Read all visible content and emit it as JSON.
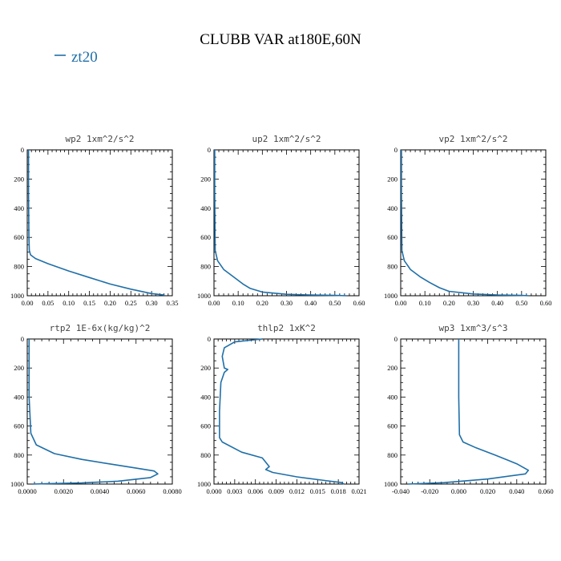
{
  "title": "CLUBB VAR at180E,60N",
  "legend": {
    "label": "zt20",
    "color": "#1f6fa8"
  },
  "chart_data": [
    {
      "type": "line",
      "title": "wp2  1xm^2/s^2",
      "xlim": [
        0,
        0.35
      ],
      "ylim": [
        1000,
        0
      ],
      "xticks": [
        0,
        0.05,
        0.1,
        0.15,
        0.2,
        0.25,
        0.3,
        0.35
      ],
      "xtick_labels": [
        "0.00",
        "0.05",
        "0.10",
        "0.15",
        "0.20",
        "0.25",
        "0.30",
        "0.35"
      ],
      "yticks": [
        0,
        200,
        400,
        600,
        800,
        1000
      ],
      "ytick_labels": [
        "0",
        "200",
        "400",
        "600",
        "800",
        "1000"
      ],
      "series": [
        {
          "x": [
            0.003,
            0.003,
            0.004,
            0.005,
            0.008,
            0.02,
            0.05,
            0.1,
            0.15,
            0.2,
            0.25,
            0.3,
            0.33,
            0.33
          ],
          "y": [
            0,
            300,
            600,
            690,
            720,
            745,
            780,
            830,
            875,
            920,
            955,
            985,
            995,
            1000
          ]
        }
      ]
    },
    {
      "type": "line",
      "title": "up2  1xm^2/s^2",
      "xlim": [
        0,
        0.6
      ],
      "ylim": [
        1000,
        0
      ],
      "xticks": [
        0,
        0.1,
        0.2,
        0.3,
        0.4,
        0.5,
        0.6
      ],
      "xtick_labels": [
        "0.00",
        "0.10",
        "0.20",
        "0.30",
        "0.40",
        "0.50",
        "0.60"
      ],
      "yticks": [
        0,
        200,
        400,
        600,
        800,
        1000
      ],
      "ytick_labels": [
        "0",
        "200",
        "400",
        "600",
        "800",
        "1000"
      ],
      "series": [
        {
          "x": [
            0.003,
            0.003,
            0.005,
            0.015,
            0.04,
            0.08,
            0.12,
            0.15,
            0.2,
            0.3,
            0.4,
            0.5,
            0.55
          ],
          "y": [
            0,
            300,
            690,
            760,
            820,
            870,
            920,
            950,
            975,
            990,
            995,
            998,
            1000
          ]
        }
      ]
    },
    {
      "type": "line",
      "title": "vp2  1xm^2/s^2",
      "xlim": [
        0,
        0.6
      ],
      "ylim": [
        1000,
        0
      ],
      "xticks": [
        0,
        0.1,
        0.2,
        0.3,
        0.4,
        0.5,
        0.6
      ],
      "xtick_labels": [
        "0.00",
        "0.10",
        "0.20",
        "0.30",
        "0.40",
        "0.50",
        "0.60"
      ],
      "yticks": [
        0,
        200,
        400,
        600,
        800,
        1000
      ],
      "ytick_labels": [
        "0",
        "200",
        "400",
        "600",
        "800",
        "1000"
      ],
      "series": [
        {
          "x": [
            0.003,
            0.003,
            0.005,
            0.015,
            0.04,
            0.08,
            0.12,
            0.16,
            0.2,
            0.3,
            0.4,
            0.5,
            0.53
          ],
          "y": [
            0,
            300,
            690,
            760,
            820,
            870,
            910,
            945,
            970,
            988,
            995,
            998,
            1000
          ]
        }
      ]
    },
    {
      "type": "line",
      "title": "rtp2  1E-6x(kg/kg)^2",
      "xlim": [
        0,
        0.008
      ],
      "ylim": [
        1000,
        0
      ],
      "xticks": [
        0,
        0.002,
        0.004,
        0.006,
        0.008
      ],
      "xtick_labels": [
        "0.0000",
        "0.0020",
        "0.0040",
        "0.0060",
        "0.0080"
      ],
      "yticks": [
        0,
        200,
        400,
        600,
        800,
        1000
      ],
      "ytick_labels": [
        "0",
        "200",
        "400",
        "600",
        "800",
        "1000"
      ],
      "series": [
        {
          "x": [
            0.0001,
            0.0001,
            0.0002,
            0.0005,
            0.0015,
            0.003,
            0.0045,
            0.006,
            0.007,
            0.0072,
            0.0068,
            0.005,
            0.003,
            0.001,
            0.0003
          ],
          "y": [
            0,
            400,
            650,
            730,
            790,
            830,
            860,
            890,
            910,
            930,
            955,
            980,
            992,
            998,
            1000
          ]
        }
      ]
    },
    {
      "type": "line",
      "title": "thlp2  1xK^2",
      "xlim": [
        0,
        0.021
      ],
      "ylim": [
        1000,
        0
      ],
      "xticks": [
        0,
        0.003,
        0.006,
        0.009,
        0.012,
        0.015,
        0.018,
        0.021
      ],
      "xtick_labels": [
        "0.000",
        "0.003",
        "0.006",
        "0.009",
        "0.012",
        "0.015",
        "0.018",
        "0.021"
      ],
      "yticks": [
        0,
        200,
        400,
        600,
        800,
        1000
      ],
      "ytick_labels": [
        "0",
        "200",
        "400",
        "600",
        "800",
        "1000"
      ],
      "series": [
        {
          "x": [
            0.007,
            0.003,
            0.0015,
            0.0012,
            0.0015,
            0.002,
            0.0015,
            0.001,
            0.0008,
            0.0008,
            0.0012,
            0.004,
            0.007,
            0.008,
            0.0075,
            0.0085,
            0.012,
            0.016,
            0.0185,
            0.0188
          ],
          "y": [
            0,
            20,
            60,
            120,
            200,
            210,
            230,
            300,
            500,
            680,
            710,
            780,
            820,
            880,
            900,
            920,
            950,
            975,
            990,
            1000
          ]
        }
      ]
    },
    {
      "type": "line",
      "title": "wp3  1xm^3/s^3",
      "xlim": [
        -0.04,
        0.06
      ],
      "ylim": [
        1000,
        0
      ],
      "xticks": [
        -0.04,
        -0.02,
        0,
        0.02,
        0.04,
        0.06
      ],
      "xtick_labels": [
        "-0.040",
        "-0.020",
        "0.000",
        "0.020",
        "0.040",
        "0.060"
      ],
      "yticks": [
        0,
        200,
        400,
        600,
        800,
        1000
      ],
      "ytick_labels": [
        "0",
        "200",
        "400",
        "600",
        "800",
        "1000"
      ],
      "series": [
        {
          "x": [
            0,
            0,
            0.0005,
            0.003,
            0.012,
            0.025,
            0.04,
            0.048,
            0.046,
            0.02,
            -0.01,
            -0.035
          ],
          "y": [
            0,
            400,
            660,
            710,
            750,
            800,
            860,
            905,
            930,
            965,
            990,
            1000
          ]
        }
      ]
    }
  ]
}
